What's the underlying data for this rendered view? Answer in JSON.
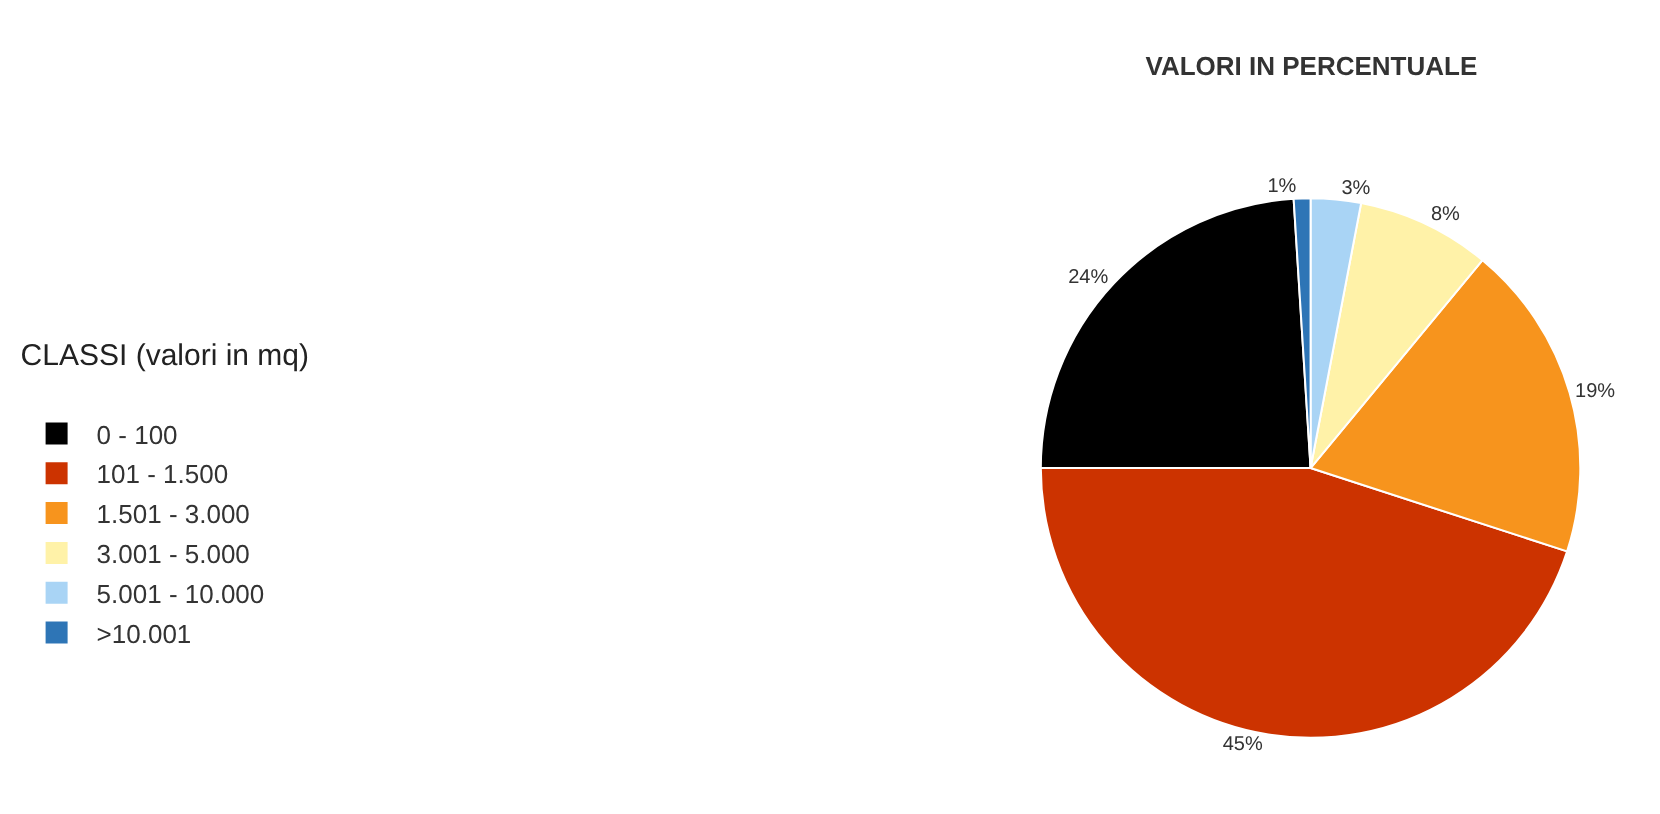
{
  "chart_data": {
    "type": "pie",
    "title": "VALORI IN PERCENTUALE",
    "legend_title": "CLASSI (valori in mq)",
    "categories": [
      "0 - 100",
      "101 - 1.500",
      "1.501 - 3.000",
      "3.001 - 5.000",
      "5.001 - 10.000",
      ">10.001"
    ],
    "values": [
      24,
      45,
      19,
      8,
      3,
      1
    ],
    "value_labels": [
      "24%",
      "45%",
      "19%",
      "8%",
      "3%",
      "1%"
    ],
    "colors": [
      "#000000",
      "#cc3300",
      "#f7941d",
      "#fff2a8",
      "#a9d4f5",
      "#2e75b6"
    ],
    "legend": "left"
  }
}
